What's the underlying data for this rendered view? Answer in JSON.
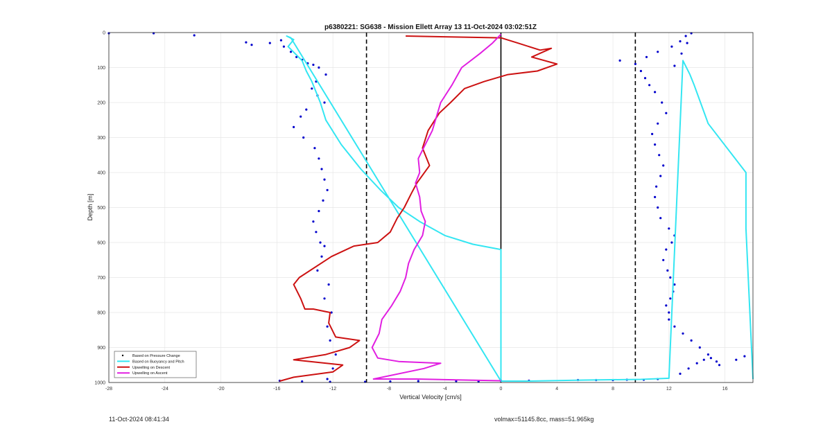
{
  "chart_data": {
    "type": "scatter",
    "title": "p6380221: SG638 - Mission Ellett Array 13 11-Oct-2024 03:02:51Z",
    "xlabel": "Vertical Velocity [cm/s]",
    "ylabel": "Depth [m]",
    "xlim": [
      -28,
      18
    ],
    "ylim": [
      0,
      1000
    ],
    "y_reversed": true,
    "grid": true,
    "x_ticks": [
      -28,
      -24,
      -20,
      -16,
      -12,
      -8,
      -4,
      0,
      4,
      8,
      12,
      16
    ],
    "y_ticks": [
      0,
      100,
      200,
      300,
      400,
      500,
      600,
      700,
      800,
      900,
      1000
    ],
    "reference_lines": [
      {
        "x": -9.6,
        "style": "dashed",
        "color": "#000000"
      },
      {
        "x": 0,
        "style": "solid",
        "color": "#000000"
      },
      {
        "x": 9.6,
        "style": "dashed",
        "color": "#000000"
      }
    ],
    "legend": {
      "location": "bottom-left",
      "entries": [
        {
          "label": "Based on Pressure Change",
          "color": "#0000cc",
          "style": "dot"
        },
        {
          "label": "Based on Buoyancy and Pitch",
          "color": "#33e6f2",
          "style": "line"
        },
        {
          "label": "Upwelling on Descent",
          "color": "#cc1111",
          "style": "line"
        },
        {
          "label": "Upwelling on Ascent",
          "color": "#e11ee1",
          "style": "line"
        }
      ]
    },
    "series": [
      {
        "name": "Based on Pressure Change",
        "kind": "scatter",
        "color": "#0000cc",
        "x": [
          -28,
          -24.8,
          -21.9,
          -18.2,
          -17.8,
          -16.5,
          -15.7,
          -15.5,
          -15.0,
          -14.6,
          -14.2,
          -13.8,
          -13.4,
          -13.0,
          -12.5,
          -13.2,
          -13.5,
          -13.1,
          -12.6,
          -13.9,
          -14.3,
          -14.8,
          -14.1,
          -13.3,
          -13.0,
          -12.8,
          -12.6,
          -12.4,
          -12.7,
          -13.0,
          -13.4,
          -13.2,
          -12.9,
          -12.6,
          -12.8,
          -13.1,
          -12.3,
          -12.6,
          -12.1,
          -12.4,
          -12.2,
          -11.8,
          -12.0,
          -12.4,
          -15.8,
          -14.2,
          -12.2,
          -9.7,
          -7.9,
          -5.9,
          -3.2,
          -1.6,
          0,
          2.0,
          5.5,
          6.8,
          8.0,
          9.0,
          10.2,
          11.2,
          12.8,
          13.4,
          14.0,
          14.5,
          15.0,
          15.4,
          15.6,
          14.8,
          14.2,
          13.6,
          13.0,
          12.4,
          12.0,
          12.0,
          11.8,
          12.1,
          12.3,
          12.4,
          12.1,
          11.9,
          11.6,
          11.8,
          12.2,
          12.4,
          12.0,
          11.4,
          11.2,
          11.0,
          11.1,
          11.4,
          11.6,
          11.3,
          11.0,
          10.8,
          11.2,
          11.8,
          11.5,
          11.0,
          10.6,
          10.3,
          10.0,
          9.6,
          8.5,
          10.4,
          11.2,
          12.2,
          12.8,
          13.2,
          13.6,
          13.3,
          12.9,
          12.4,
          17.4,
          16.8
        ],
        "y": [
          2,
          2,
          8,
          28,
          35,
          30,
          22,
          40,
          55,
          70,
          78,
          88,
          92,
          100,
          120,
          140,
          160,
          180,
          200,
          220,
          240,
          270,
          300,
          330,
          360,
          390,
          420,
          450,
          480,
          510,
          540,
          570,
          600,
          610,
          640,
          680,
          720,
          760,
          800,
          840,
          880,
          920,
          960,
          990,
          995,
          997,
          998,
          998,
          997,
          996,
          996,
          997,
          995,
          995,
          993,
          993,
          993,
          992,
          992,
          990,
          975,
          960,
          945,
          935,
          930,
          940,
          950,
          920,
          900,
          880,
          860,
          840,
          820,
          800,
          780,
          760,
          740,
          720,
          700,
          680,
          650,
          620,
          600,
          580,
          560,
          530,
          500,
          470,
          440,
          410,
          380,
          350,
          320,
          290,
          260,
          230,
          200,
          170,
          150,
          130,
          110,
          90,
          80,
          70,
          55,
          40,
          25,
          10,
          2,
          30,
          60,
          95,
          925,
          935
        ]
      },
      {
        "name": "Based on Buoyancy and Pitch",
        "kind": "line",
        "color": "#33e6f2",
        "x": [
          0,
          0,
          0,
          0,
          0,
          0,
          0,
          -2.0,
          -4.0,
          -5.8,
          -7.3,
          -8.6,
          -10.0,
          -11.4,
          -12.5,
          -12.9,
          -13.5,
          -13.9,
          -14.2,
          -15.2,
          -14.8,
          -15.3,
          -15.0,
          0,
          2,
          6,
          10,
          12,
          13,
          13.5,
          13.8,
          14.8,
          17.5,
          17.5,
          17.5,
          18
        ],
        "y": [
          996,
          900,
          800,
          700,
          640,
          620,
          620,
          605,
          580,
          540,
          500,
          450,
          390,
          320,
          250,
          200,
          140,
          110,
          80,
          40,
          20,
          10,
          15,
          996,
          996,
          993,
          991,
          988,
          80,
          120,
          150,
          260,
          400,
          460,
          560,
          990
        ]
      },
      {
        "name": "Upwelling on Descent",
        "kind": "line",
        "color": "#cc1111",
        "x": [
          -6.8,
          0,
          1.2,
          2.8,
          3.6,
          2.2,
          4.0,
          2.6,
          0.5,
          -1.2,
          -2.6,
          -3.6,
          -4.4,
          -5.2,
          -5.6,
          -5.1,
          -6.0,
          -6.4,
          -6.9,
          -7.4,
          -7.9,
          -8.8,
          -10.5,
          -12.1,
          -14.4,
          -14.8,
          -14.3,
          -14.0,
          -13.4,
          -12.2,
          -12.3,
          -11.8,
          -10.1,
          -10.8,
          -12.5,
          -14.8,
          -11.3,
          -12.0,
          -14.8,
          -15.8
        ],
        "y": [
          10,
          15,
          30,
          50,
          45,
          70,
          90,
          110,
          120,
          140,
          160,
          200,
          230,
          280,
          330,
          380,
          430,
          460,
          500,
          530,
          570,
          600,
          610,
          640,
          700,
          720,
          760,
          790,
          790,
          800,
          830,
          870,
          880,
          900,
          920,
          935,
          950,
          970,
          985,
          996
        ]
      },
      {
        "name": "Upwelling on Ascent",
        "kind": "line",
        "color": "#e11ee1",
        "x": [
          0,
          -0.6,
          -1.5,
          -2.8,
          -3.5,
          -4.3,
          -4.6,
          -4.9,
          -5.4,
          -5.9,
          -5.8,
          -6.1,
          -5.8,
          -5.7,
          -5.4,
          -5.6,
          -6.2,
          -6.6,
          -6.8,
          -7.2,
          -7.8,
          -8.5,
          -8.7,
          -9.2,
          -8.8,
          -7.3,
          -4.3,
          -5.5,
          -9.1,
          -6.0,
          -2.5,
          0
        ],
        "y": [
          5,
          30,
          60,
          100,
          150,
          200,
          240,
          280,
          320,
          360,
          400,
          430,
          470,
          510,
          540,
          580,
          620,
          660,
          700,
          740,
          780,
          820,
          860,
          900,
          930,
          940,
          945,
          960,
          990,
          990,
          993,
          995
        ]
      }
    ]
  },
  "footer": {
    "left": "11-Oct-2024 08:41:34",
    "right": "volmax=51145.8cc, mass=51.965kg"
  }
}
